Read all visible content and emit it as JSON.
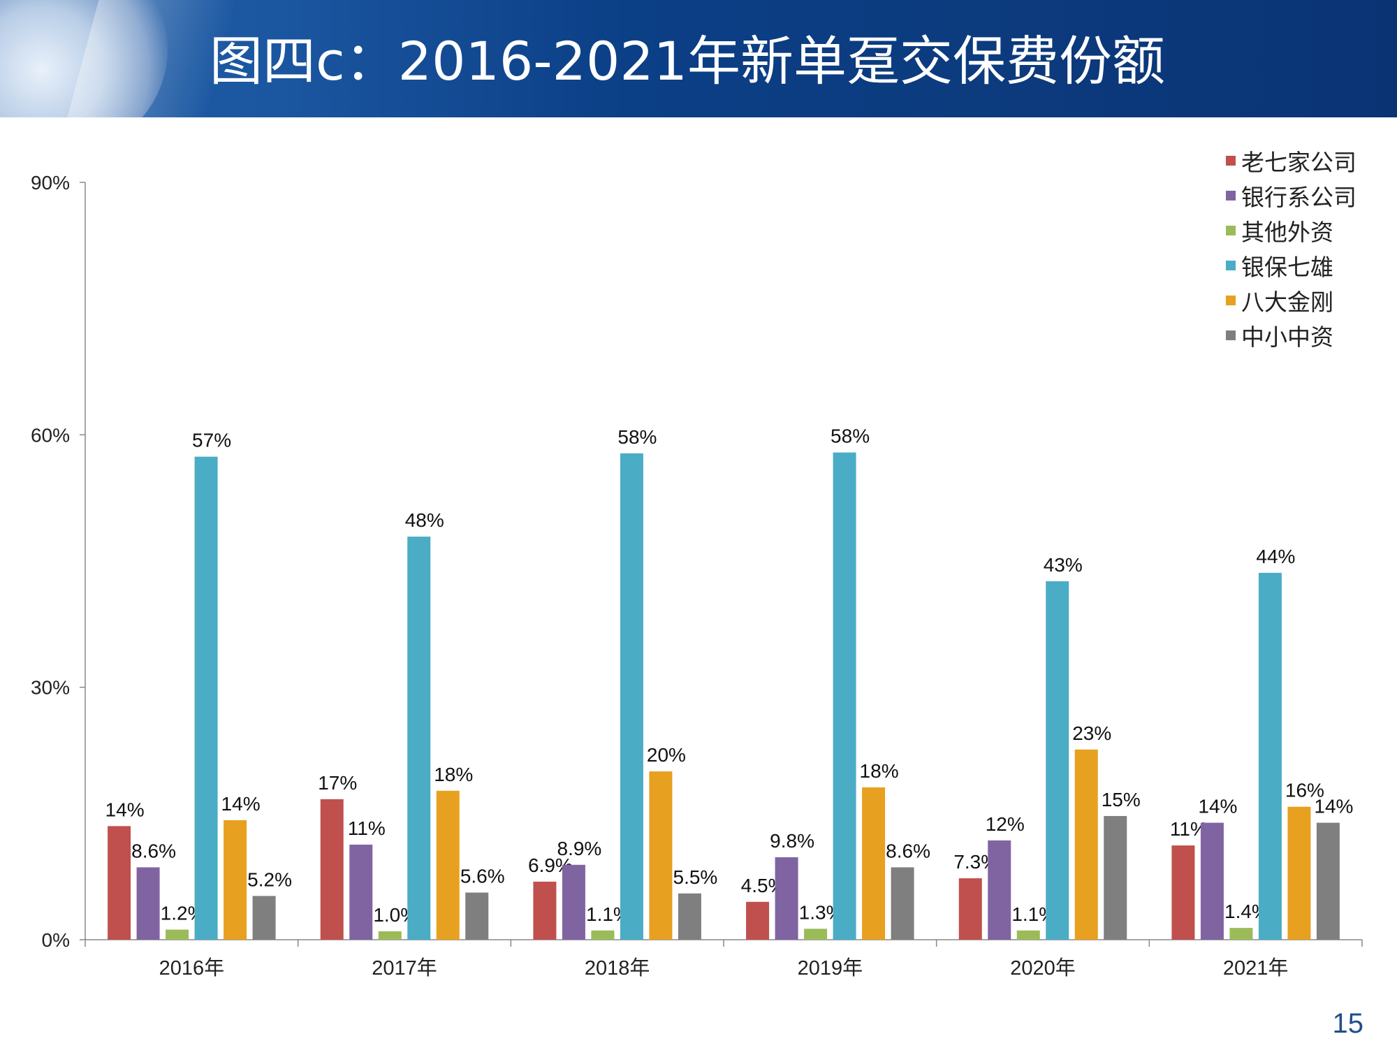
{
  "header": {
    "title": "图四c：2016-2021年新单趸交保费份额"
  },
  "page_number": "15",
  "chart_data": {
    "type": "bar",
    "title": "",
    "xlabel": "",
    "ylabel": "",
    "ylim": [
      0,
      90
    ],
    "yticks": [
      0,
      30,
      60,
      90
    ],
    "ytick_labels": [
      "0%",
      "30%",
      "60%",
      "90%"
    ],
    "legend_position": "top-right",
    "grid": false,
    "categories": [
      "2016年",
      "2017年",
      "2018年",
      "2019年",
      "2020年",
      "2021年"
    ],
    "series": [
      {
        "name": "老七家公司",
        "color": "#c0504d",
        "values": [
          13.5,
          16.7,
          6.9,
          4.5,
          7.3,
          11.2
        ],
        "labels": [
          "14%",
          "17%",
          "6.9%",
          "4.5%",
          "7.3%",
          "11%"
        ]
      },
      {
        "name": "银行系公司",
        "color": "#8064a2",
        "values": [
          8.6,
          11.3,
          8.9,
          9.8,
          11.8,
          13.9
        ],
        "labels": [
          "8.6%",
          "11%",
          "8.9%",
          "9.8%",
          "12%",
          "14%"
        ]
      },
      {
        "name": "其他外资",
        "color": "#9bbb59",
        "values": [
          1.2,
          1.0,
          1.1,
          1.3,
          1.1,
          1.4
        ],
        "labels": [
          "1.2%",
          "1.0%",
          "1.1%",
          "1.3%",
          "1.1%",
          "1.4%"
        ]
      },
      {
        "name": "银保七雄",
        "color": "#4bacc6",
        "values": [
          57.4,
          47.9,
          57.8,
          57.9,
          42.6,
          43.6
        ],
        "labels": [
          "57%",
          "48%",
          "58%",
          "58%",
          "43%",
          "44%"
        ]
      },
      {
        "name": "八大金刚",
        "color": "#e8a020",
        "values": [
          14.2,
          17.7,
          20.0,
          18.1,
          22.6,
          15.8
        ],
        "labels": [
          "14%",
          "18%",
          "20%",
          "18%",
          "23%",
          "16%"
        ]
      },
      {
        "name": "中小中资",
        "color": "#7f7f7f",
        "values": [
          5.2,
          5.6,
          5.5,
          8.6,
          14.7,
          13.9
        ],
        "labels": [
          "5.2%",
          "5.6%",
          "5.5%",
          "8.6%",
          "15%",
          "14%"
        ]
      }
    ]
  }
}
